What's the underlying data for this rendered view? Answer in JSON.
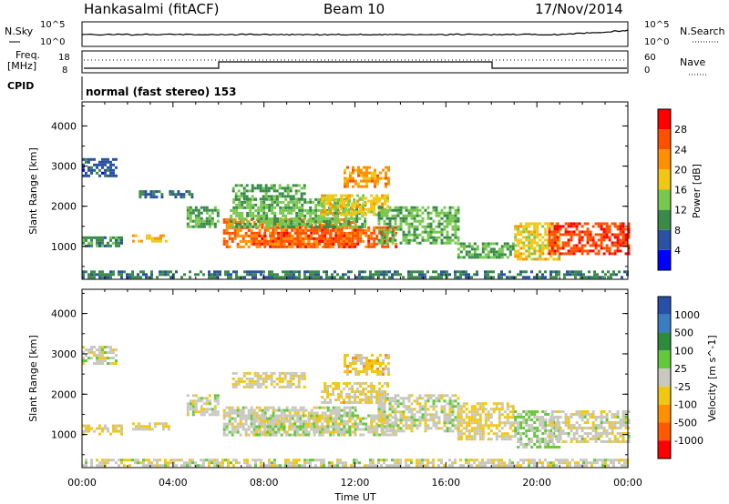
{
  "header": {
    "station": "Hankasalmi (fitACF)",
    "beam": "Beam 10",
    "date": "17/Nov/2014"
  },
  "top_panels": {
    "nsky_label": "N.Sky",
    "nsearch_label": "N.Search",
    "freq_label_line1": "Freq.",
    "freq_label_line2": "[MHz]",
    "nave_label": "Nave",
    "cpid_label": "CPID",
    "cpid_value": "normal (fast stereo) 153",
    "noise_tick_top": "10^5",
    "noise_tick_bottom": "10^0",
    "freq_ticks": [
      "18",
      "8"
    ],
    "nave_ticks": [
      "60",
      "0"
    ]
  },
  "axes": {
    "xlabel": "Time UT",
    "ylabel": "Slant Range [km]",
    "xticks": [
      "00:00",
      "04:00",
      "08:00",
      "12:00",
      "16:00",
      "20:00",
      "00:00"
    ],
    "yticks": [
      "1000",
      "2000",
      "3000",
      "4000"
    ],
    "ylim": [
      180,
      4600
    ],
    "xlim_hours": [
      0,
      24
    ]
  },
  "colors": {
    "power": [
      "#0000ff",
      "#2a52a0",
      "#3a8a4a",
      "#78c850",
      "#f0c814",
      "#ff9000",
      "#ff5000",
      "#ff0000"
    ],
    "velocity": [
      "#2850a8",
      "#3c7cc0",
      "#2e8a3c",
      "#64c83c",
      "#c8c8c0",
      "#f0c814",
      "#ff9000",
      "#ff5a00",
      "#ff0000"
    ],
    "noise_line": "#000000"
  },
  "chart_data": [
    {
      "type": "heatmap",
      "title": "",
      "ylabel": "Slant Range [km]",
      "colorbar_label": "Power [dB]",
      "colorbar_ticks": [
        "4",
        "8",
        "12",
        "16",
        "20",
        "24",
        "28"
      ],
      "value_range": [
        0,
        32
      ],
      "regions": [
        {
          "t": [
            0.0,
            1.7
          ],
          "r": [
            1000,
            1250
          ],
          "v": 10
        },
        {
          "t": [
            0.0,
            1.5
          ],
          "r": [
            2750,
            3200
          ],
          "v": 6
        },
        {
          "t": [
            2.2,
            3.8
          ],
          "r": [
            1100,
            1300
          ],
          "v": 19
        },
        {
          "t": [
            2.5,
            4.8
          ],
          "r": [
            2200,
            2400
          ],
          "v": 8
        },
        {
          "t": [
            4.6,
            6.0
          ],
          "r": [
            1500,
            2000
          ],
          "v": 12
        },
        {
          "t": [
            6.2,
            12.0
          ],
          "r": [
            1000,
            1700
          ],
          "v": 23
        },
        {
          "t": [
            7.5,
            13.8
          ],
          "r": [
            1000,
            1500
          ],
          "v": 26
        },
        {
          "t": [
            6.5,
            12.5
          ],
          "r": [
            1500,
            2200
          ],
          "v": 13
        },
        {
          "t": [
            6.6,
            9.8
          ],
          "r": [
            2200,
            2550
          ],
          "v": 11
        },
        {
          "t": [
            10.5,
            13.5
          ],
          "r": [
            1800,
            2300
          ],
          "v": 18
        },
        {
          "t": [
            11.5,
            13.5
          ],
          "r": [
            2500,
            3000
          ],
          "v": 22
        },
        {
          "t": [
            13.0,
            16.5
          ],
          "r": [
            1100,
            2000
          ],
          "v": 13
        },
        {
          "t": [
            16.5,
            19.0
          ],
          "r": [
            700,
            1100
          ],
          "v": 12
        },
        {
          "t": [
            19.0,
            21.0
          ],
          "r": [
            700,
            1600
          ],
          "v": 18
        },
        {
          "t": [
            20.5,
            24.0
          ],
          "r": [
            800,
            1600
          ],
          "v": 27
        },
        {
          "t": [
            0.0,
            24.0
          ],
          "r": [
            200,
            400
          ],
          "v": 9
        }
      ]
    },
    {
      "type": "heatmap",
      "title": "",
      "ylabel": "Slant Range [km]",
      "colorbar_label": "Velocity [m s^-1]",
      "colorbar_ticks": [
        "1000",
        "500",
        "100",
        "25",
        "-25",
        "-100",
        "-500",
        "-1000"
      ],
      "value_range": [
        -1300,
        1300
      ],
      "regions": [
        {
          "t": [
            0.0,
            1.7
          ],
          "r": [
            1000,
            1250
          ],
          "v": -150
        },
        {
          "t": [
            0.0,
            1.5
          ],
          "r": [
            2750,
            3200
          ],
          "v": 0
        },
        {
          "t": [
            2.2,
            3.8
          ],
          "r": [
            1100,
            1300
          ],
          "v": -150
        },
        {
          "t": [
            4.6,
            6.0
          ],
          "r": [
            1500,
            2000
          ],
          "v": 0
        },
        {
          "t": [
            6.2,
            12.0
          ],
          "r": [
            1000,
            1700
          ],
          "v": 0
        },
        {
          "t": [
            7.5,
            13.8
          ],
          "r": [
            1000,
            1500
          ],
          "v": 0
        },
        {
          "t": [
            6.6,
            9.8
          ],
          "r": [
            2200,
            2550
          ],
          "v": -120
        },
        {
          "t": [
            10.5,
            13.5
          ],
          "r": [
            1800,
            2300
          ],
          "v": -200
        },
        {
          "t": [
            11.5,
            13.5
          ],
          "r": [
            2500,
            3000
          ],
          "v": -250
        },
        {
          "t": [
            13.0,
            16.5
          ],
          "r": [
            1100,
            2000
          ],
          "v": 0
        },
        {
          "t": [
            16.5,
            19.0
          ],
          "r": [
            900,
            1800
          ],
          "v": -150
        },
        {
          "t": [
            19.0,
            21.0
          ],
          "r": [
            700,
            1600
          ],
          "v": 150
        },
        {
          "t": [
            20.5,
            24.0
          ],
          "r": [
            800,
            1600
          ],
          "v": -50
        },
        {
          "t": [
            0.0,
            24.0
          ],
          "r": [
            200,
            400
          ],
          "v": -50
        }
      ]
    }
  ]
}
